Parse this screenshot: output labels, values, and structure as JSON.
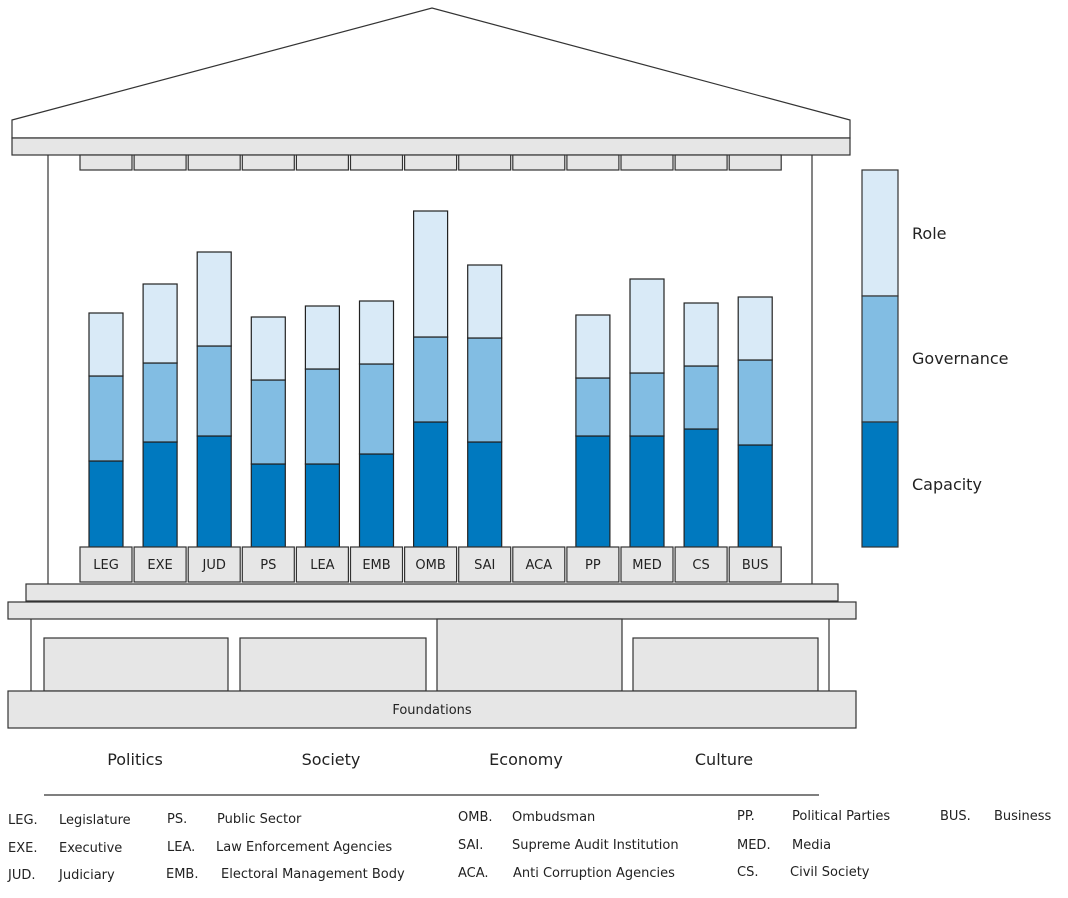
{
  "chart_data": {
    "type": "bar",
    "stacked": true,
    "categories": [
      "LEG",
      "EXE",
      "JUD",
      "PS",
      "LEA",
      "EMB",
      "OMB",
      "SAI",
      "ACA",
      "PP",
      "MED",
      "CS",
      "BUS"
    ],
    "series": [
      {
        "name": "Capacity",
        "color": "#0079bf",
        "values": [
          86,
          105,
          111,
          83,
          83,
          93,
          125,
          105,
          0,
          111,
          111,
          118,
          102
        ]
      },
      {
        "name": "Governance",
        "color": "#82bde3",
        "values": [
          85,
          79,
          90,
          84,
          95,
          90,
          85,
          104,
          0,
          58,
          63,
          63,
          85
        ]
      },
      {
        "name": "Role",
        "color": "#d9eaf7",
        "values": [
          63,
          79,
          94,
          63,
          63,
          63,
          126,
          73,
          0,
          63,
          94,
          63,
          63
        ]
      }
    ],
    "legend": {
      "position": "right",
      "order": [
        "Role",
        "Governance",
        "Capacity"
      ]
    },
    "foundations_label": "Foundations",
    "base_categories": [
      "Politics",
      "Society",
      "Economy",
      "Culture"
    ]
  },
  "abbreviations": [
    {
      "code": "LEG.",
      "name": "Legislature"
    },
    {
      "code": "EXE.",
      "name": "Executive"
    },
    {
      "code": "JUD.",
      "name": "Judiciary"
    },
    {
      "code": "PS.",
      "name": "Public Sector"
    },
    {
      "code": "LEA.",
      "name": "Law Enforcement Agencies"
    },
    {
      "code": "EMB.",
      "name": "Electoral Management Body"
    },
    {
      "code": "OMB.",
      "name": "Ombudsman"
    },
    {
      "code": "SAI.",
      "name": "Supreme Audit Institution"
    },
    {
      "code": "ACA.",
      "name": "Anti Corruption Agencies"
    },
    {
      "code": "PP.",
      "name": "Political Parties"
    },
    {
      "code": "MED.",
      "name": "Media"
    },
    {
      "code": "CS.",
      "name": "Civil Society"
    },
    {
      "code": "BUS.",
      "name": "Business"
    }
  ]
}
